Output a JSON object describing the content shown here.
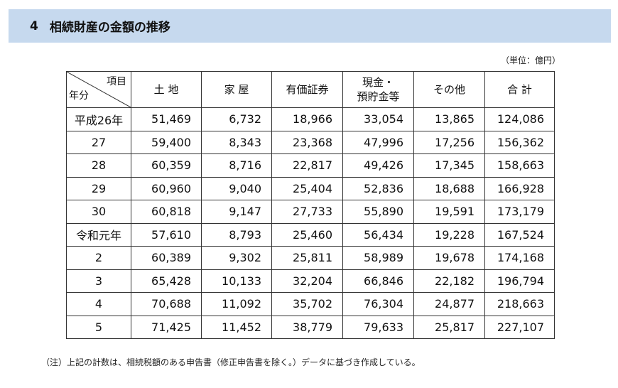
{
  "header": {
    "section_number": "4",
    "title": "相続財産の金額の推移"
  },
  "unit_label": "（単位：億円）",
  "table": {
    "corner": {
      "item_label": "項目",
      "year_label": "年分"
    },
    "columns": [
      "土 地",
      "家 屋",
      "有価証券",
      "現金・\n預貯金等",
      "その他",
      "合 計"
    ],
    "column_lines": [
      [
        "土 地"
      ],
      [
        "家 屋"
      ],
      [
        "有価証券"
      ],
      [
        "現金・",
        "預貯金等"
      ],
      [
        "その他"
      ],
      [
        "合 計"
      ]
    ],
    "rows": [
      {
        "year": "平成26年",
        "values": [
          "51,469",
          "6,732",
          "18,966",
          "33,054",
          "13,865",
          "124,086"
        ]
      },
      {
        "year": "27",
        "values": [
          "59,400",
          "8,343",
          "23,368",
          "47,996",
          "17,256",
          "156,362"
        ]
      },
      {
        "year": "28",
        "values": [
          "60,359",
          "8,716",
          "22,817",
          "49,426",
          "17,345",
          "158,663"
        ]
      },
      {
        "year": "29",
        "values": [
          "60,960",
          "9,040",
          "25,404",
          "52,836",
          "18,688",
          "166,928"
        ]
      },
      {
        "year": "30",
        "values": [
          "60,818",
          "9,147",
          "27,733",
          "55,890",
          "19,591",
          "173,179"
        ]
      },
      {
        "year": "令和元年",
        "values": [
          "57,610",
          "8,793",
          "25,460",
          "56,434",
          "19,228",
          "167,524"
        ]
      },
      {
        "year": "2",
        "values": [
          "60,389",
          "9,302",
          "25,811",
          "58,989",
          "19,678",
          "174,168"
        ]
      },
      {
        "year": "3",
        "values": [
          "65,428",
          "10,133",
          "32,204",
          "66,846",
          "22,182",
          "196,794"
        ]
      },
      {
        "year": "4",
        "values": [
          "70,688",
          "11,092",
          "35,702",
          "76,304",
          "24,877",
          "218,663"
        ]
      },
      {
        "year": "5",
        "values": [
          "71,425",
          "11,452",
          "38,779",
          "79,633",
          "25,817",
          "227,107"
        ]
      }
    ]
  },
  "note": "（注）上記の計数は、相続税額のある申告書（修正申告書を除く。）データに基づき作成している。",
  "colors": {
    "title_bar_bg": "#c6d9ee",
    "border": "#333333"
  }
}
